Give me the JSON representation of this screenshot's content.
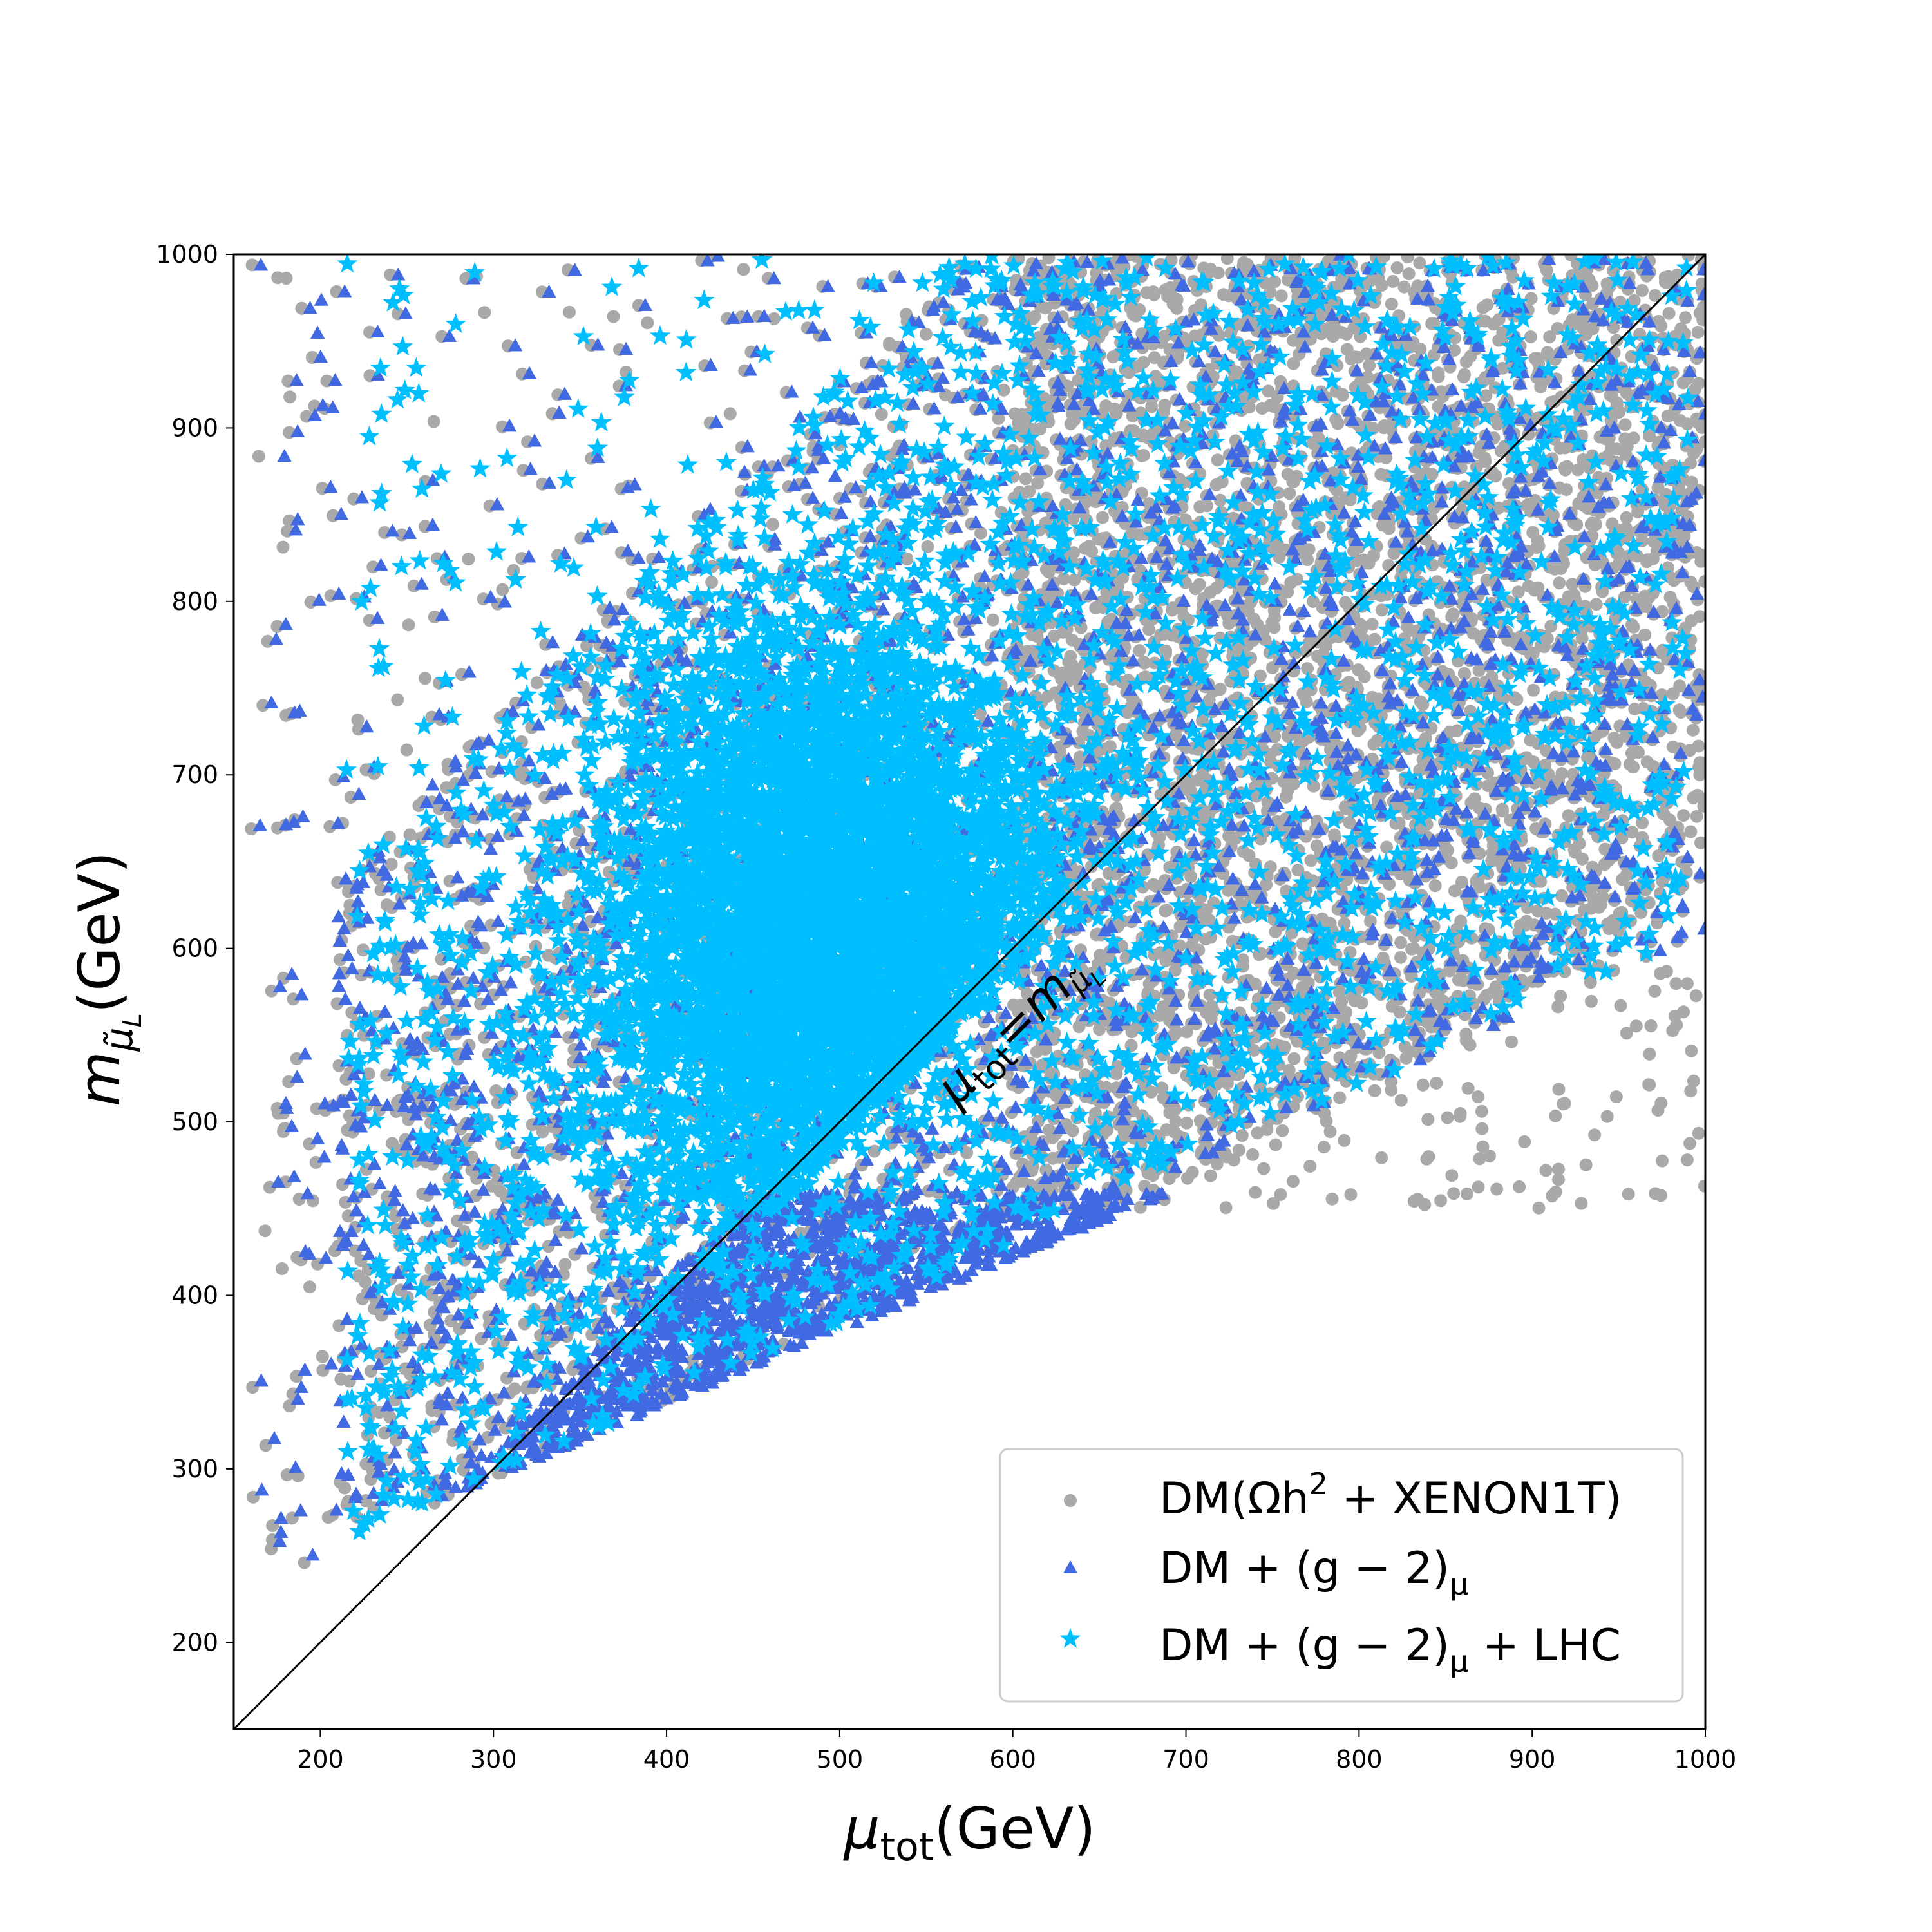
{
  "chart_data": {
    "type": "scatter",
    "xlabel": "μtot(GeV)",
    "xlabel_main": "μ",
    "xlabel_sub": "tot",
    "xlabel_unit": "(GeV)",
    "ylabel": "m_{μ̃_L}(GeV)",
    "ylabel_main": "m",
    "ylabel_sub": "μ̃",
    "ylabel_subsub": "L",
    "ylabel_unit": "(GeV)",
    "xlim": [
      150,
      1000
    ],
    "ylim": [
      150,
      1000
    ],
    "x_ticks": [
      "200",
      "300",
      "400",
      "500",
      "600",
      "700",
      "800",
      "900",
      "1000"
    ],
    "y_ticks": [
      "200",
      "300",
      "400",
      "500",
      "600",
      "700",
      "800",
      "900",
      "1000"
    ],
    "x_tick_values": [
      200,
      300,
      400,
      500,
      600,
      700,
      800,
      900,
      1000
    ],
    "y_tick_values": [
      200,
      300,
      400,
      500,
      600,
      700,
      800,
      900,
      1000
    ],
    "grid": false,
    "legend_position": "bottom-right",
    "diagonal": {
      "from": [
        150,
        150
      ],
      "to": [
        1000,
        1000
      ],
      "label_main": "μ",
      "label_sub": "tot",
      "label_eq": "=m",
      "label_sub2": "μ̃",
      "label_subsub2": "L",
      "label_anchor": [
        595,
        535
      ]
    },
    "series": [
      {
        "name": "DM(Ωh² + XENON1T)",
        "legend_parts": [
          "DM(Ωh",
          "2",
          " + XENON1T)"
        ],
        "marker": "circle",
        "color": "#a9a9a9",
        "regions": [
          {
            "x": [
              160,
              1000
            ],
            "y": [
              170,
              1000
            ],
            "n": 4200,
            "shape": "wide"
          },
          {
            "x": [
              600,
              1000
            ],
            "y": [
              450,
              1000
            ],
            "n": 3200,
            "shape": "upper-right"
          }
        ]
      },
      {
        "name": "DM + (g − 2)μ",
        "legend_parts": [
          "DM + (g − 2)",
          "μ"
        ],
        "marker": "triangle",
        "color": "#4169e1",
        "regions": [
          {
            "x": [
              165,
              1000
            ],
            "y": [
              175,
              1000
            ],
            "n": 7000,
            "shape": "wide"
          },
          {
            "x": [
              280,
              720
            ],
            "y": [
              240,
              460
            ],
            "n": 6000,
            "shape": "below-diagonal"
          }
        ]
      },
      {
        "name": "DM + (g − 2)μ + LHC",
        "legend_parts": [
          "DM + (g − 2)",
          "μ",
          " + LHC"
        ],
        "marker": "star",
        "color": "#00bfff",
        "regions": [
          {
            "x": [
              215,
              990
            ],
            "y": [
              255,
              1000
            ],
            "n": 2600,
            "shape": "wide"
          },
          {
            "x": [
              300,
              700
            ],
            "y": [
              340,
              880
            ],
            "n": 9000,
            "shape": "core"
          }
        ]
      }
    ]
  }
}
